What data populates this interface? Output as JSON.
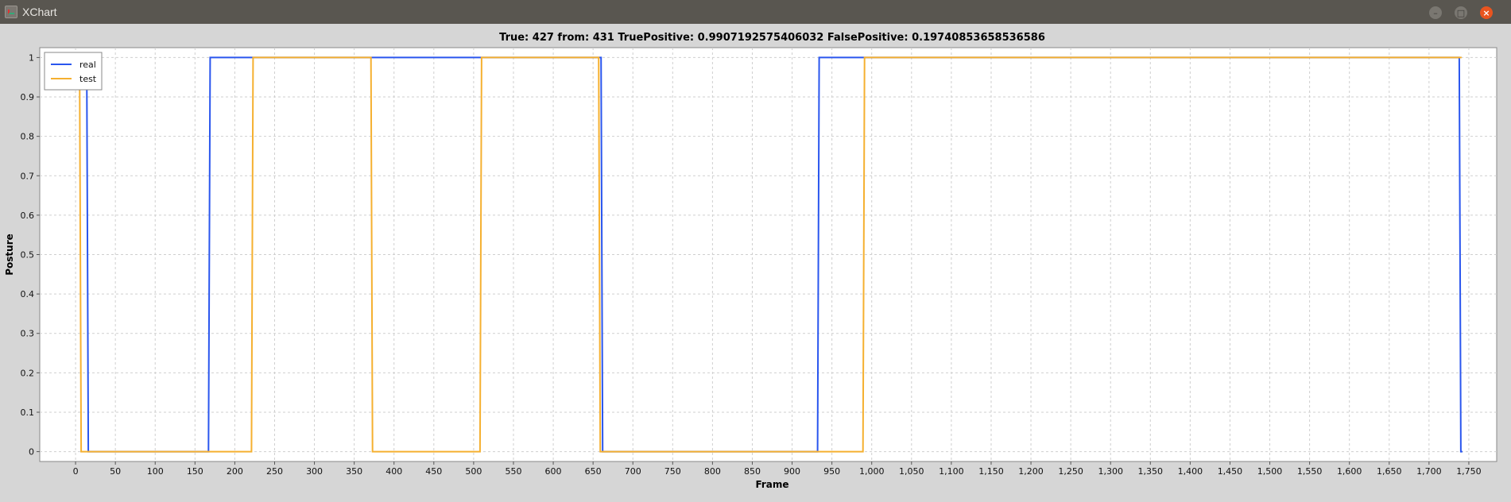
{
  "window": {
    "title": "XChart",
    "min_glyph": "–",
    "max_glyph": "□",
    "close_glyph": "×"
  },
  "chart_data": {
    "type": "line",
    "title": "True: 427 from: 431 TruePositive: 0.9907192575406032 FalsePositive: 0.19740853658536586",
    "xlabel": "Frame",
    "ylabel": "Posture",
    "xlim": [
      -45,
      1785
    ],
    "ylim": [
      -0.025,
      1.025
    ],
    "x_ticks": [
      0,
      50,
      100,
      150,
      200,
      250,
      300,
      350,
      400,
      450,
      500,
      550,
      600,
      650,
      700,
      750,
      800,
      850,
      900,
      950,
      1000,
      1050,
      1100,
      1150,
      1200,
      1250,
      1300,
      1350,
      1400,
      1450,
      1500,
      1550,
      1600,
      1650,
      1700,
      1750
    ],
    "x_tick_labels": [
      "0",
      "50",
      "100",
      "150",
      "200",
      "250",
      "300",
      "350",
      "400",
      "450",
      "500",
      "550",
      "600",
      "650",
      "700",
      "750",
      "800",
      "850",
      "900",
      "950",
      "1,000",
      "1,050",
      "1,100",
      "1,150",
      "1,200",
      "1,250",
      "1,300",
      "1,350",
      "1,400",
      "1,450",
      "1,500",
      "1,550",
      "1,600",
      "1,650",
      "1,700",
      "1,750"
    ],
    "y_ticks": [
      0,
      0.1,
      0.2,
      0.3,
      0.4,
      0.5,
      0.6,
      0.7,
      0.8,
      0.9,
      1
    ],
    "y_tick_labels": [
      "0",
      "0.1",
      "0.2",
      "0.3",
      "0.4",
      "0.5",
      "0.6",
      "0.7",
      "0.8",
      "0.9",
      "1"
    ],
    "grid": true,
    "legend_position": "top-left",
    "series": [
      {
        "name": "real",
        "color": "#2a56ee",
        "points": [
          [
            14,
            1
          ],
          [
            16,
            0
          ],
          [
            167,
            0
          ],
          [
            169,
            1
          ],
          [
            660,
            1
          ],
          [
            662,
            0
          ],
          [
            932,
            0
          ],
          [
            934,
            1
          ],
          [
            1738,
            1
          ],
          [
            1740,
            0
          ],
          [
            1742,
            0
          ]
        ]
      },
      {
        "name": "test",
        "color": "#f5b030",
        "points": [
          [
            5,
            1
          ],
          [
            7,
            0
          ],
          [
            221,
            0
          ],
          [
            223,
            1
          ],
          [
            371,
            1
          ],
          [
            373,
            0
          ],
          [
            508,
            0
          ],
          [
            510,
            1
          ],
          [
            657,
            1
          ],
          [
            659,
            0
          ],
          [
            989,
            0
          ],
          [
            991,
            1
          ],
          [
            1741,
            1
          ]
        ]
      }
    ]
  }
}
